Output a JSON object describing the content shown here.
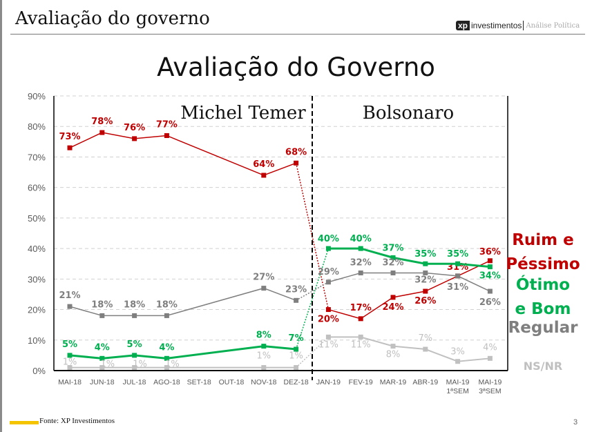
{
  "header": {
    "title": "Avaliação do governo",
    "logo_text": "xp investimentos",
    "logo_subtitle": "Análise Política"
  },
  "footer": {
    "source": "Fonte: XP Investimentos",
    "page_number": "3"
  },
  "colors": {
    "ruim": "#c00000",
    "otimo": "#00b050",
    "regular": "#7f7f7f",
    "nsnr": "#c0c0c0",
    "footer_accent": "#f5c400"
  },
  "chart_data": {
    "type": "line",
    "title": "Avaliação do Governo",
    "annotations": [
      "Michel Temer",
      "Bolsonaro"
    ],
    "categories": [
      "MAI-18",
      "JUN-18",
      "JUL-18",
      "AGO-18",
      "SET-18",
      "OUT-18",
      "NOV-18",
      "DEZ-18",
      "JAN-19",
      "FEV-19",
      "MAR-19",
      "ABR-19",
      "MAI-19\n1ªSEM",
      "MAI-19\n3ªSEM"
    ],
    "ylim": [
      0,
      90
    ],
    "yticks": [
      "0%",
      "10%",
      "20%",
      "30%",
      "40%",
      "50%",
      "60%",
      "70%",
      "80%",
      "90%"
    ],
    "grid": true,
    "legend_placement": "right",
    "divider_between": [
      "DEZ-18",
      "JAN-19"
    ],
    "series": [
      {
        "name": "Ruim e Péssimo",
        "legend_lines": [
          "Ruim e",
          "Péssimo"
        ],
        "color": "#c00000",
        "values": [
          73,
          78,
          76,
          77,
          null,
          null,
          64,
          68,
          20,
          17,
          24,
          26,
          31,
          36
        ],
        "labels": [
          "73%",
          "78%",
          "76%",
          "77%",
          "",
          "",
          "64%",
          "68%",
          "20%",
          "17%",
          "24%",
          "26%",
          "31%",
          "36%"
        ]
      },
      {
        "name": "Ótimo e Bom",
        "legend_lines": [
          "Ótimo",
          "e Bom"
        ],
        "color": "#00b050",
        "values": [
          5,
          4,
          5,
          4,
          null,
          null,
          8,
          7,
          40,
          40,
          37,
          35,
          35,
          34
        ],
        "labels": [
          "5%",
          "4%",
          "5%",
          "4%",
          "",
          "",
          "8%",
          "7%",
          "40%",
          "40%",
          "37%",
          "35%",
          "35%",
          "34%"
        ]
      },
      {
        "name": "Regular",
        "legend_lines": [
          "Regular"
        ],
        "color": "#7f7f7f",
        "values": [
          21,
          18,
          18,
          18,
          null,
          null,
          27,
          23,
          29,
          32,
          32,
          32,
          31,
          26
        ],
        "labels": [
          "21%",
          "18%",
          "18%",
          "18%",
          "",
          "",
          "27%",
          "23%",
          "29%",
          "32%",
          "32%",
          "32%",
          "31%",
          "26%"
        ]
      },
      {
        "name": "NS/NR",
        "legend_lines": [
          "NS/NR"
        ],
        "color": "#c0c0c0",
        "values": [
          1,
          1,
          1,
          1,
          null,
          null,
          1,
          1,
          11,
          11,
          8,
          7,
          3,
          4
        ],
        "labels": [
          "1%",
          "1%",
          "1%",
          "1%",
          "",
          "",
          "1%",
          "1%",
          "11%",
          "11%",
          "8%",
          "7%",
          "3%",
          "4%"
        ]
      }
    ]
  }
}
